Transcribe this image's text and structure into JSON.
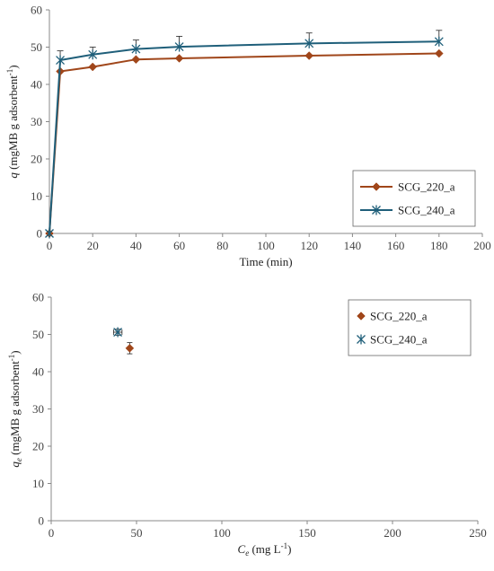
{
  "chart_data": [
    {
      "type": "line",
      "ylabel": {
        "main": "q",
        "rest": "(mgMB g adsorbent",
        "sup": "-1",
        "close": ")"
      },
      "xlabel": "Time (min)",
      "xlim": [
        0,
        200
      ],
      "ylim": [
        0,
        60
      ],
      "xticks": [
        "0",
        "20",
        "40",
        "60",
        "80",
        "100",
        "120",
        "140",
        "160",
        "180",
        "200"
      ],
      "yticks": [
        "0",
        "10",
        "20",
        "30",
        "40",
        "50",
        "60"
      ],
      "grid": false,
      "legend": "bottom-right",
      "series": [
        {
          "name": "SCG_220_a",
          "color": "#a0461a",
          "marker": "diamond",
          "x": [
            0,
            5,
            20,
            40,
            60,
            120,
            180
          ],
          "y": [
            0,
            43.5,
            44.7,
            46.7,
            47.0,
            47.7,
            48.3
          ],
          "err": [
            0,
            0,
            0,
            0,
            0,
            0,
            0
          ]
        },
        {
          "name": "SCG_240_a",
          "color": "#1f5f7a",
          "marker": "asterisk",
          "x": [
            0,
            5,
            20,
            40,
            60,
            120,
            180
          ],
          "y": [
            0,
            46.5,
            48.0,
            49.5,
            50.1,
            51.0,
            51.5
          ],
          "err": [
            0,
            2.5,
            2.0,
            2.4,
            2.8,
            2.8,
            3.0
          ]
        }
      ]
    },
    {
      "type": "scatter",
      "ylabel": {
        "main": "q",
        "sub": "e",
        "rest": "(mgMB g adsorbent",
        "sup": "-1",
        "close": ")"
      },
      "xlabel": {
        "main": "C",
        "sub": "e",
        "rest": "(mg L",
        "sup": "-1",
        "close": ")"
      },
      "xlim": [
        0,
        250
      ],
      "ylim": [
        0,
        60
      ],
      "xticks": [
        "0",
        "50",
        "100",
        "150",
        "200",
        "250"
      ],
      "yticks": [
        "0",
        "10",
        "20",
        "30",
        "40",
        "50",
        "60"
      ],
      "grid": false,
      "legend": "top-right",
      "series": [
        {
          "name": "SCG_220_a",
          "color": "#a0461a",
          "marker": "diamond",
          "x": [
            46
          ],
          "y": [
            46.3
          ],
          "yerr": [
            1.5
          ],
          "xerr": [
            0
          ]
        },
        {
          "name": "SCG_240_a",
          "color": "#1f5f7a",
          "marker": "asterisk",
          "x": [
            39
          ],
          "y": [
            50.6
          ],
          "yerr": [
            0.8
          ],
          "xerr": [
            2.5
          ]
        }
      ]
    }
  ]
}
